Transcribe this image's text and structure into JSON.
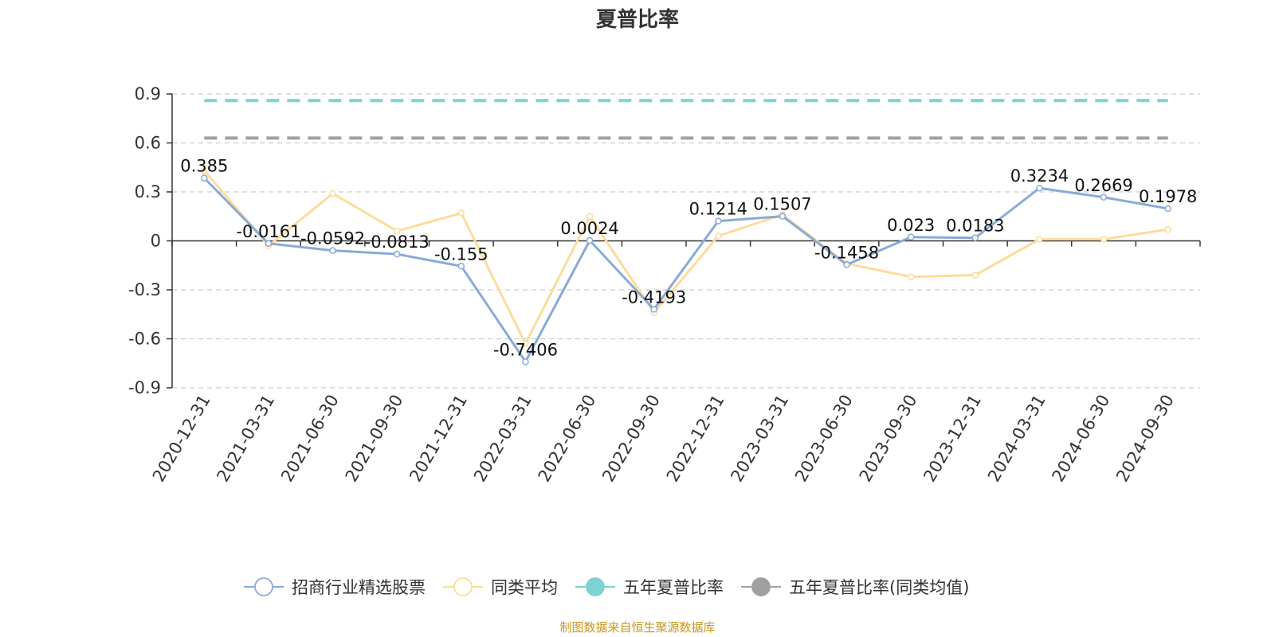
{
  "chart_data": {
    "type": "line",
    "title": "夏普比率",
    "categories": [
      "2020-12-31",
      "2021-03-31",
      "2021-06-30",
      "2021-09-30",
      "2021-12-31",
      "2022-03-31",
      "2022-06-30",
      "2022-09-30",
      "2022-12-31",
      "2023-03-31",
      "2023-06-30",
      "2023-09-30",
      "2023-12-31",
      "2024-03-31",
      "2024-06-30",
      "2024-09-30"
    ],
    "ylim": [
      -0.9,
      0.9
    ],
    "yticks": [
      "0.9",
      "0.6",
      "0.3",
      "0",
      "-0.3",
      "-0.6",
      "-0.9"
    ],
    "grid": true,
    "legend_position": "bottom",
    "series": [
      {
        "name": "招商行业精选股票",
        "color": "#8aaad8",
        "values": [
          0.385,
          -0.0161,
          -0.0592,
          -0.0813,
          -0.155,
          -0.7406,
          0.0024,
          -0.4193,
          0.1214,
          0.1507,
          -0.1458,
          0.023,
          0.0183,
          0.3234,
          0.2669,
          0.1978
        ],
        "labels": [
          "0.385",
          "-0.0161",
          "-0.0592",
          "-0.0813",
          "-0.155",
          "-0.7406",
          "0.0024",
          "-0.4193",
          "0.1214",
          "0.1507",
          "-0.1458",
          "0.023",
          "0.0183",
          "0.3234",
          "0.2669",
          "0.1978"
        ]
      },
      {
        "name": "同类平均",
        "color": "#fddc9a",
        "values": [
          0.43,
          -0.03,
          0.29,
          0.06,
          0.17,
          -0.63,
          0.15,
          -0.44,
          0.03,
          0.16,
          -0.14,
          -0.22,
          -0.21,
          0.01,
          0.01,
          0.07
        ]
      }
    ],
    "reference_lines": [
      {
        "name": "五年夏普比率",
        "color": "#7dd2d2",
        "value": 0.86
      },
      {
        "name": "五年夏普比率(同类均值)",
        "color": "#a0a0a0",
        "value": 0.63
      }
    ],
    "source": "制图数据来自恒生聚源数据库"
  }
}
